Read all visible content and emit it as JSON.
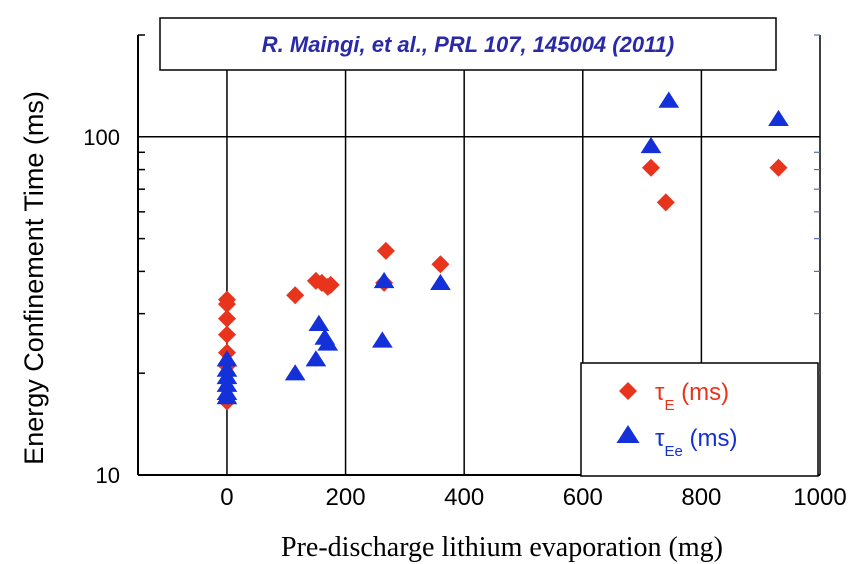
{
  "chart_data": {
    "type": "scatter",
    "title": "R. Maingi, et al., PRL 107, 145004 (2011)",
    "xlabel": "Pre-discharge lithium evaporation (mg)",
    "ylabel": "Energy Confinement Time (ms)",
    "xlim": [
      -150,
      1000
    ],
    "ylim": [
      10,
      200
    ],
    "yscale": "log",
    "x_ticks": [
      0,
      200,
      400,
      600,
      800,
      1000
    ],
    "x_tick_labels": [
      "0",
      "200",
      "400",
      "600",
      "800",
      "1000"
    ],
    "y_ticks": [
      10,
      100
    ],
    "y_tick_labels": [
      "10",
      "100"
    ],
    "grid": "vertical lines at x ticks, horizontal line at y=100",
    "legend_position": "bottom-right",
    "colors": {
      "tau_E": "#e8341c",
      "tau_Ee": "#1430d8",
      "citation_text": "#2a2aa8"
    },
    "series": [
      {
        "name": "τE (ms)",
        "legend_symbol": "τ",
        "legend_subscript": "E",
        "legend_unit": " (ms)",
        "marker": "diamond",
        "color": "#e8341c",
        "points": [
          [
            0,
            33
          ],
          [
            0,
            32
          ],
          [
            0,
            29
          ],
          [
            0,
            26
          ],
          [
            0,
            23
          ],
          [
            0,
            21
          ],
          [
            0,
            16.5
          ],
          [
            115,
            34
          ],
          [
            150,
            37.5
          ],
          [
            160,
            37
          ],
          [
            170,
            36
          ],
          [
            175,
            36.5
          ],
          [
            265,
            37
          ],
          [
            268,
            46
          ],
          [
            360,
            42
          ],
          [
            715,
            81
          ],
          [
            740,
            64
          ],
          [
            930,
            81
          ]
        ]
      },
      {
        "name": "τEe (ms)",
        "legend_symbol": "τ",
        "legend_subscript": "Ee",
        "legend_unit": " (ms)",
        "marker": "triangle",
        "color": "#1430d8",
        "points": [
          [
            0,
            22
          ],
          [
            0,
            20.5
          ],
          [
            0,
            19.5
          ],
          [
            0,
            18.5
          ],
          [
            0,
            17.5
          ],
          [
            0,
            17
          ],
          [
            115,
            20
          ],
          [
            150,
            22
          ],
          [
            155,
            28
          ],
          [
            165,
            25.5
          ],
          [
            170,
            24.5
          ],
          [
            262,
            25
          ],
          [
            265,
            37.5
          ],
          [
            360,
            37
          ],
          [
            715,
            94
          ],
          [
            745,
            128
          ],
          [
            930,
            113
          ]
        ]
      }
    ]
  }
}
